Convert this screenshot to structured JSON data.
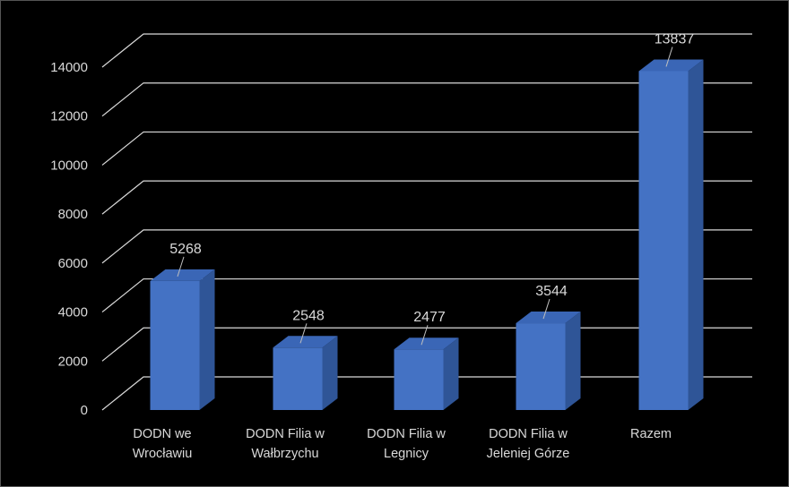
{
  "chart_data": {
    "type": "bar",
    "style": "3d-column",
    "categories": [
      [
        "DODN we",
        "Wrocławiu"
      ],
      [
        "DODN Filia w",
        "Wałbrzychu"
      ],
      [
        "DODN Filia w",
        "Legnicy"
      ],
      [
        "DODN Filia w",
        "Jeleniej Górze"
      ],
      [
        "Razem"
      ]
    ],
    "values": [
      5268,
      2548,
      2477,
      3544,
      13837
    ],
    "value_labels": [
      "5268",
      "2548",
      "2477",
      "3544",
      "13837"
    ],
    "yticks": [
      "0",
      "2000",
      "4000",
      "6000",
      "8000",
      "10000",
      "12000",
      "14000"
    ],
    "ylim": [
      0,
      14000
    ],
    "grid": true,
    "legend": false,
    "colors": {
      "background": "#000000",
      "bar_front": "#4472C4",
      "bar_side": "#2F5597",
      "bar_top": "#3A66B6",
      "gridline": "#d9d9d9",
      "text": "#d9d9d9"
    }
  }
}
